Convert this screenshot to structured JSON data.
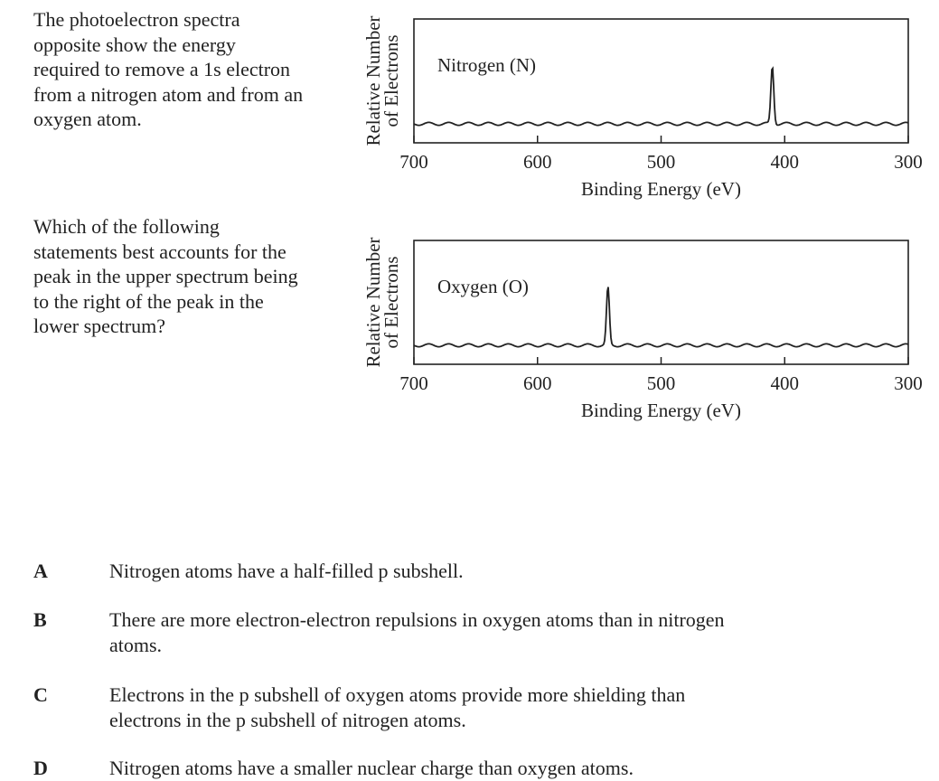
{
  "question": {
    "stem1": "The photoelectron spectra opposite show the energy required to remove a 1s electron from a nitrogen atom and from an oxygen atom.",
    "stem2": "Which of the following statements best accounts for the peak in the upper spectrum being to the right of the peak in the lower spectrum?",
    "options": [
      {
        "letter": "A",
        "text": "Nitrogen atoms have a half-filled p subshell."
      },
      {
        "letter": "B",
        "text": "There are more electron-electron repulsions in oxygen atoms than in nitrogen atoms."
      },
      {
        "letter": "C",
        "text": "Electrons in the p subshell of oxygen atoms provide more shielding than electrons in the p subshell of nitrogen atoms."
      },
      {
        "letter": "D",
        "text": "Nitrogen atoms have a smaller nuclear charge than oxygen atoms."
      }
    ]
  },
  "chart_data": [
    {
      "type": "line",
      "title": "Nitrogen (N)",
      "xlabel": "Binding Energy (eV)",
      "ylabel": "Relative Number of Electrons",
      "xlim": [
        700,
        300
      ],
      "x_reversed": true,
      "xticks": [
        "700",
        "600",
        "500",
        "400",
        "300"
      ],
      "peaks": [
        {
          "x": 410
        }
      ],
      "color": "#222222",
      "grid": false
    },
    {
      "type": "line",
      "title": "Oxygen (O)",
      "xlabel": "Binding Energy (eV)",
      "ylabel": "Relative Number of Electrons",
      "xlim": [
        700,
        300
      ],
      "x_reversed": true,
      "xticks": [
        "700",
        "600",
        "500",
        "400",
        "300"
      ],
      "peaks": [
        {
          "x": 543
        }
      ],
      "color": "#222222",
      "grid": false
    }
  ]
}
